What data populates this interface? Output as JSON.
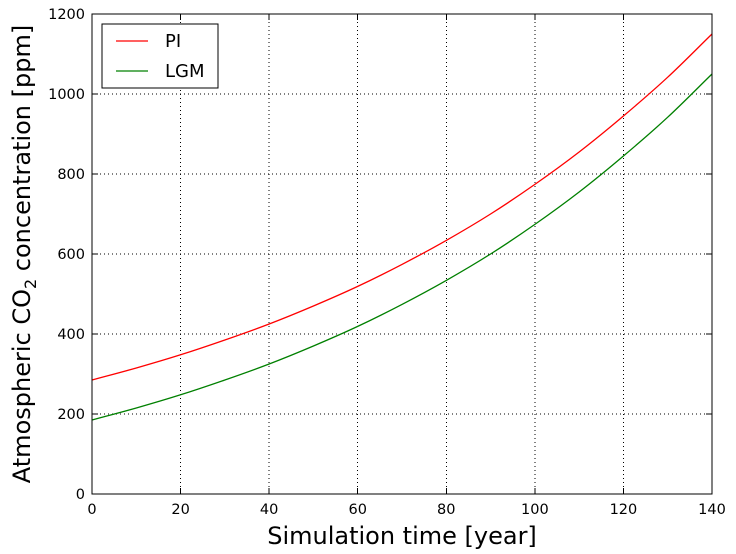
{
  "chart_data": {
    "type": "line",
    "title": "",
    "xlabel": "Simulation time [year]",
    "ylabel": {
      "prefix": "Atmospheric CO",
      "subscript": "2",
      "suffix": " concentration [ppm]"
    },
    "xlim": [
      0,
      140
    ],
    "ylim": [
      0,
      1200
    ],
    "xticks": [
      0,
      20,
      40,
      60,
      80,
      100,
      120,
      140
    ],
    "yticks": [
      0,
      200,
      400,
      600,
      800,
      1000,
      1200
    ],
    "xtick_labels": [
      "0",
      "20",
      "40",
      "60",
      "80",
      "100",
      "120",
      "140"
    ],
    "ytick_labels": [
      "0",
      "200",
      "400",
      "600",
      "800",
      "1000",
      "1200"
    ],
    "grid": true,
    "legend_position": "top-left",
    "series": [
      {
        "name": "PI",
        "color": "#ff0000",
        "x": [
          0,
          10,
          20,
          30,
          40,
          50,
          60,
          70,
          80,
          90,
          100,
          110,
          120,
          130,
          140
        ],
        "y": [
          285,
          315,
          348,
          385,
          425,
          470,
          519,
          574,
          634,
          700,
          774,
          855,
          945,
          1042,
          1150
        ]
      },
      {
        "name": "LGM",
        "color": "#008000",
        "x": [
          0,
          10,
          20,
          30,
          40,
          50,
          60,
          70,
          80,
          90,
          100,
          110,
          120,
          130,
          140
        ],
        "y": [
          185,
          215,
          248,
          285,
          325,
          370,
          419,
          474,
          534,
          600,
          674,
          755,
          845,
          942,
          1050
        ]
      }
    ]
  }
}
